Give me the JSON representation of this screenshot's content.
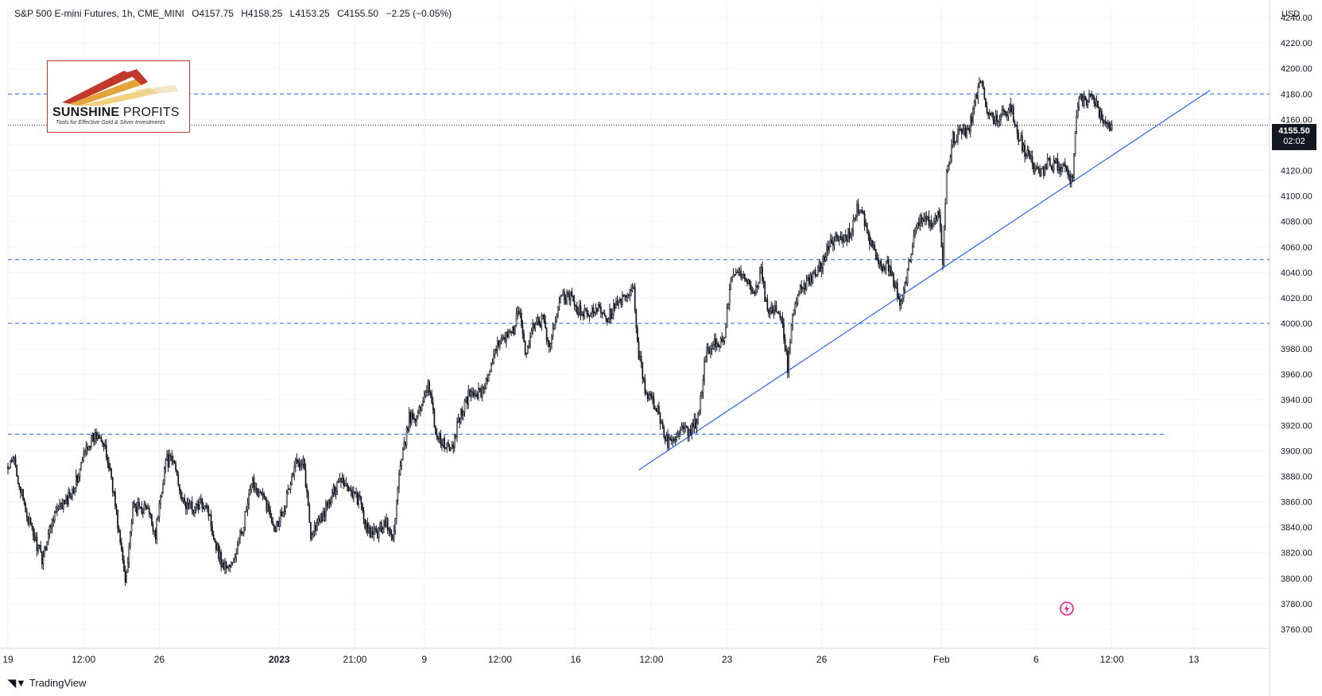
{
  "header": {
    "symbol": "S&P 500 E-mini Futures, 1h, CME_MINI",
    "open": "O4157.75",
    "high": "H4158.25",
    "low": "L4153.25",
    "close": "C4155.50",
    "change": "−2.25 (−0.05%)"
  },
  "logo": {
    "name_bold": "SUNSHINE",
    "name_thin": " PROFITS",
    "tagline": "Tools for Effective Gold & Silver Investments"
  },
  "brand": {
    "name": "TradingView"
  },
  "axis": {
    "currency": "USD",
    "last_price": "4155.50",
    "countdown": "02:02"
  },
  "colors": {
    "candle": "#131722",
    "level_line": "#2962ff",
    "trend_line": "#2962ff",
    "grid": "#f0f3fa",
    "flash_icon": "#e91e8c"
  },
  "chart_data": {
    "type": "candlestick",
    "series": "S&P 500 E-mini Futures 1h",
    "ylim": [
      3745,
      4250
    ],
    "y_ticks": [
      3760,
      3780,
      3800,
      3820,
      3840,
      3860,
      3880,
      3900,
      3920,
      3940,
      3960,
      3980,
      4000,
      4020,
      4040,
      4060,
      4080,
      4100,
      4120,
      4140,
      4160,
      4180,
      4200,
      4220,
      4240
    ],
    "x_ticks": [
      {
        "label": "19",
        "bar": 0
      },
      {
        "label": "12:00",
        "bar": 60
      },
      {
        "label": "26",
        "bar": 120
      },
      {
        "label": "2023",
        "bar": 215
      },
      {
        "label": "21:00",
        "bar": 275
      },
      {
        "label": "9",
        "bar": 330
      },
      {
        "label": "12:00",
        "bar": 390
      },
      {
        "label": "16",
        "bar": 450
      },
      {
        "label": "12:00",
        "bar": 510
      },
      {
        "label": "23",
        "bar": 570
      },
      {
        "label": "26",
        "bar": 645
      },
      {
        "label": "Feb",
        "bar": 740
      },
      {
        "label": "6",
        "bar": 815
      },
      {
        "label": "12:00",
        "bar": 875
      },
      {
        "label": "13",
        "bar": 940
      }
    ],
    "bar_count": 1000,
    "last_bar": 875,
    "anchors": [
      {
        "bar": 0,
        "price": 3885
      },
      {
        "bar": 5,
        "price": 3893
      },
      {
        "bar": 12,
        "price": 3860
      },
      {
        "bar": 18,
        "price": 3840
      },
      {
        "bar": 27,
        "price": 3815
      },
      {
        "bar": 36,
        "price": 3850
      },
      {
        "bar": 46,
        "price": 3860
      },
      {
        "bar": 55,
        "price": 3878
      },
      {
        "bar": 63,
        "price": 3905
      },
      {
        "bar": 73,
        "price": 3915
      },
      {
        "bar": 82,
        "price": 3880
      },
      {
        "bar": 88,
        "price": 3835
      },
      {
        "bar": 93,
        "price": 3798
      },
      {
        "bar": 99,
        "price": 3855
      },
      {
        "bar": 110,
        "price": 3855
      },
      {
        "bar": 117,
        "price": 3835
      },
      {
        "bar": 125,
        "price": 3893
      },
      {
        "bar": 132,
        "price": 3890
      },
      {
        "bar": 139,
        "price": 3858
      },
      {
        "bar": 148,
        "price": 3855
      },
      {
        "bar": 157,
        "price": 3860
      },
      {
        "bar": 164,
        "price": 3830
      },
      {
        "bar": 170,
        "price": 3810
      },
      {
        "bar": 178,
        "price": 3810
      },
      {
        "bar": 186,
        "price": 3840
      },
      {
        "bar": 194,
        "price": 3875
      },
      {
        "bar": 204,
        "price": 3860
      },
      {
        "bar": 212,
        "price": 3840
      },
      {
        "bar": 220,
        "price": 3860
      },
      {
        "bar": 228,
        "price": 3890
      },
      {
        "bar": 234,
        "price": 3895
      },
      {
        "bar": 240,
        "price": 3835
      },
      {
        "bar": 247,
        "price": 3845
      },
      {
        "bar": 255,
        "price": 3860
      },
      {
        "bar": 263,
        "price": 3880
      },
      {
        "bar": 271,
        "price": 3870
      },
      {
        "bar": 279,
        "price": 3860
      },
      {
        "bar": 285,
        "price": 3835
      },
      {
        "bar": 292,
        "price": 3835
      },
      {
        "bar": 299,
        "price": 3845
      },
      {
        "bar": 305,
        "price": 3830
      },
      {
        "bar": 310,
        "price": 3880
      },
      {
        "bar": 318,
        "price": 3925
      },
      {
        "bar": 326,
        "price": 3930
      },
      {
        "bar": 333,
        "price": 3955
      },
      {
        "bar": 339,
        "price": 3915
      },
      {
        "bar": 345,
        "price": 3905
      },
      {
        "bar": 352,
        "price": 3900
      },
      {
        "bar": 357,
        "price": 3925
      },
      {
        "bar": 366,
        "price": 3945
      },
      {
        "bar": 374,
        "price": 3945
      },
      {
        "bar": 382,
        "price": 3960
      },
      {
        "bar": 390,
        "price": 3990
      },
      {
        "bar": 399,
        "price": 3990
      },
      {
        "bar": 405,
        "price": 4010
      },
      {
        "bar": 411,
        "price": 3975
      },
      {
        "bar": 417,
        "price": 4000
      },
      {
        "bar": 424,
        "price": 4002
      },
      {
        "bar": 430,
        "price": 3980
      },
      {
        "bar": 437,
        "price": 4020
      },
      {
        "bar": 446,
        "price": 4020
      },
      {
        "bar": 452,
        "price": 4010
      },
      {
        "bar": 460,
        "price": 4005
      },
      {
        "bar": 468,
        "price": 4015
      },
      {
        "bar": 475,
        "price": 4005
      },
      {
        "bar": 483,
        "price": 4015
      },
      {
        "bar": 490,
        "price": 4020
      },
      {
        "bar": 496,
        "price": 4025
      },
      {
        "bar": 500,
        "price": 3975
      },
      {
        "bar": 506,
        "price": 3945
      },
      {
        "bar": 514,
        "price": 3935
      },
      {
        "bar": 520,
        "price": 3910
      },
      {
        "bar": 526,
        "price": 3905
      },
      {
        "bar": 534,
        "price": 3915
      },
      {
        "bar": 541,
        "price": 3915
      },
      {
        "bar": 547,
        "price": 3925
      },
      {
        "bar": 553,
        "price": 3975
      },
      {
        "bar": 560,
        "price": 3985
      },
      {
        "bar": 568,
        "price": 3985
      },
      {
        "bar": 572,
        "price": 4030
      },
      {
        "bar": 577,
        "price": 4040
      },
      {
        "bar": 585,
        "price": 4035
      },
      {
        "bar": 591,
        "price": 4025
      },
      {
        "bar": 597,
        "price": 4040
      },
      {
        "bar": 602,
        "price": 4010
      },
      {
        "bar": 609,
        "price": 4010
      },
      {
        "bar": 614,
        "price": 4000
      },
      {
        "bar": 618,
        "price": 3965
      },
      {
        "bar": 623,
        "price": 4015
      },
      {
        "bar": 630,
        "price": 4030
      },
      {
        "bar": 637,
        "price": 4035
      },
      {
        "bar": 644,
        "price": 4045
      },
      {
        "bar": 651,
        "price": 4065
      },
      {
        "bar": 660,
        "price": 4065
      },
      {
        "bar": 667,
        "price": 4070
      },
      {
        "bar": 673,
        "price": 4090
      },
      {
        "bar": 679,
        "price": 4080
      },
      {
        "bar": 685,
        "price": 4060
      },
      {
        "bar": 691,
        "price": 4045
      },
      {
        "bar": 697,
        "price": 4045
      },
      {
        "bar": 703,
        "price": 4030
      },
      {
        "bar": 708,
        "price": 4015
      },
      {
        "bar": 713,
        "price": 4040
      },
      {
        "bar": 718,
        "price": 4070
      },
      {
        "bar": 725,
        "price": 4085
      },
      {
        "bar": 733,
        "price": 4080
      },
      {
        "bar": 738,
        "price": 4085
      },
      {
        "bar": 741,
        "price": 4050
      },
      {
        "bar": 744,
        "price": 4120
      },
      {
        "bar": 749,
        "price": 4145
      },
      {
        "bar": 755,
        "price": 4150
      },
      {
        "bar": 761,
        "price": 4150
      },
      {
        "bar": 767,
        "price": 4175
      },
      {
        "bar": 771,
        "price": 4190
      },
      {
        "bar": 776,
        "price": 4165
      },
      {
        "bar": 783,
        "price": 4160
      },
      {
        "bar": 789,
        "price": 4165
      },
      {
        "bar": 795,
        "price": 4170
      },
      {
        "bar": 800,
        "price": 4150
      },
      {
        "bar": 806,
        "price": 4135
      },
      {
        "bar": 812,
        "price": 4125
      },
      {
        "bar": 818,
        "price": 4115
      },
      {
        "bar": 824,
        "price": 4125
      },
      {
        "bar": 831,
        "price": 4125
      },
      {
        "bar": 838,
        "price": 4120
      },
      {
        "bar": 844,
        "price": 4110
      },
      {
        "bar": 846,
        "price": 4150
      },
      {
        "bar": 849,
        "price": 4175
      },
      {
        "bar": 855,
        "price": 4175
      },
      {
        "bar": 860,
        "price": 4178
      },
      {
        "bar": 865,
        "price": 4165
      },
      {
        "bar": 870,
        "price": 4160
      },
      {
        "bar": 875,
        "price": 4155.5
      }
    ],
    "horizontal_levels": [
      {
        "price": 4180,
        "from_bar": 0,
        "to_bar": 1000
      },
      {
        "price": 4050,
        "from_bar": 0,
        "to_bar": 1000
      },
      {
        "price": 4000,
        "from_bar": 0,
        "to_bar": 1000
      },
      {
        "price": 3913,
        "from_bar": 0,
        "to_bar": 918
      }
    ],
    "last_price_line": 4155.5,
    "trend_line": {
      "from": {
        "bar": 500,
        "price": 3885
      },
      "to": {
        "bar": 953,
        "price": 4183
      }
    }
  }
}
